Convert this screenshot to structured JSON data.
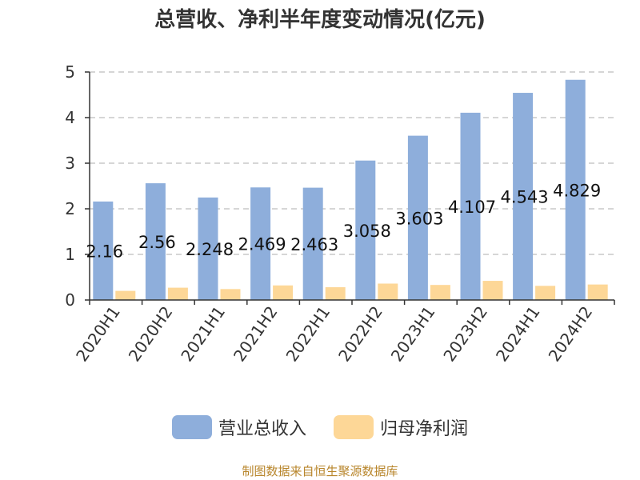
{
  "chart_data": {
    "type": "bar",
    "title": "总营收、净利半年度变动情况(亿元)",
    "categories": [
      "2020H1",
      "2020H2",
      "2021H1",
      "2021H2",
      "2022H1",
      "2022H2",
      "2023H1",
      "2023H2",
      "2024H1",
      "2024H2"
    ],
    "series": [
      {
        "name": "营业总收入",
        "color": "#8eaedb",
        "values": [
          2.16,
          2.56,
          2.248,
          2.469,
          2.463,
          3.058,
          3.603,
          4.107,
          4.543,
          4.829
        ],
        "labels": [
          "2.16",
          "2.56",
          "2.248",
          "2.469",
          "2.463",
          "3.058",
          "3.603",
          "4.107",
          "4.543",
          "4.829"
        ]
      },
      {
        "name": "归母净利润",
        "color": "#fdd797",
        "values": [
          0.2,
          0.27,
          0.24,
          0.32,
          0.28,
          0.36,
          0.33,
          0.42,
          0.31,
          0.34
        ]
      }
    ],
    "ylim": [
      0,
      5
    ],
    "yticks": [
      "0",
      "1",
      "2",
      "3",
      "4",
      "5"
    ],
    "grid": true,
    "legend_position": "bottom"
  },
  "source": "制图数据来自恒生聚源数据库"
}
